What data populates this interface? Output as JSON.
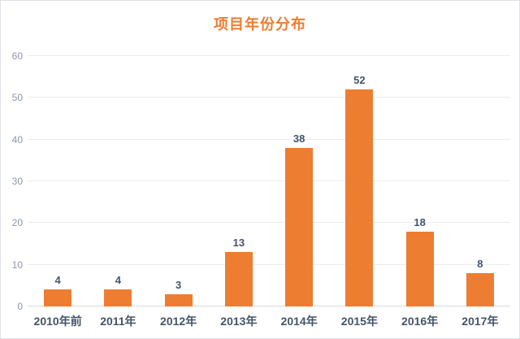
{
  "chart_data": {
    "type": "bar",
    "title": "项目年份分布",
    "categories": [
      "2010年前",
      "2011年",
      "2012年",
      "2013年",
      "2014年",
      "2015年",
      "2016年",
      "2017年"
    ],
    "values": [
      4,
      4,
      3,
      13,
      38,
      52,
      18,
      8
    ],
    "xlabel": "",
    "ylabel": "",
    "ylim": [
      0,
      60
    ],
    "yticks": [
      0,
      10,
      20,
      30,
      40,
      50,
      60
    ],
    "grid": true,
    "legend": false,
    "data_labels": true
  },
  "colors": {
    "bar": "#ED7D31",
    "title": "#ED7D31",
    "data_label": "#44546A",
    "x_label": "#44546A",
    "y_tick_label": "#8E96A6",
    "gridline": "#EAECEF",
    "baseline": "#D7DADF",
    "card_border": "#DEE2E8",
    "background": "#FFFFFF"
  }
}
